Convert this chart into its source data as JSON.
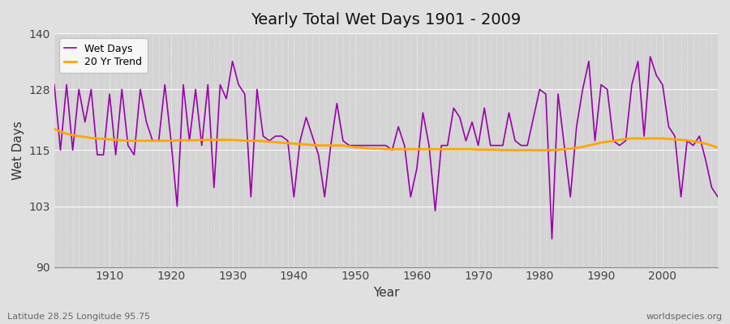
{
  "title": "Yearly Total Wet Days 1901 - 2009",
  "xlabel": "Year",
  "ylabel": "Wet Days",
  "lat_lon_label": "Latitude 28.25 Longitude 95.75",
  "watermark": "worldspecies.org",
  "wet_days_color": "#9900AA",
  "trend_color": "#FFA500",
  "bg_color": "#e0e0e0",
  "plot_bg_color": "#d4d4d4",
  "grid_color": "#ffffff",
  "ylim": [
    90,
    140
  ],
  "yticks": [
    90,
    103,
    115,
    128,
    140
  ],
  "xlim": [
    1901,
    2009
  ],
  "xticks": [
    1910,
    1920,
    1930,
    1940,
    1950,
    1960,
    1970,
    1980,
    1990,
    2000
  ],
  "years": [
    1901,
    1902,
    1903,
    1904,
    1905,
    1906,
    1907,
    1908,
    1909,
    1910,
    1911,
    1912,
    1913,
    1914,
    1915,
    1916,
    1917,
    1918,
    1919,
    1920,
    1921,
    1922,
    1923,
    1924,
    1925,
    1926,
    1927,
    1928,
    1929,
    1930,
    1931,
    1932,
    1933,
    1934,
    1935,
    1936,
    1937,
    1938,
    1939,
    1940,
    1941,
    1942,
    1943,
    1944,
    1945,
    1946,
    1947,
    1948,
    1949,
    1950,
    1951,
    1952,
    1953,
    1954,
    1955,
    1956,
    1957,
    1958,
    1959,
    1960,
    1961,
    1962,
    1963,
    1964,
    1965,
    1966,
    1967,
    1968,
    1969,
    1970,
    1971,
    1972,
    1973,
    1974,
    1975,
    1976,
    1977,
    1978,
    1979,
    1980,
    1981,
    1982,
    1983,
    1984,
    1985,
    1986,
    1987,
    1988,
    1989,
    1990,
    1991,
    1992,
    1993,
    1994,
    1995,
    1996,
    1997,
    1998,
    1999,
    2000,
    2001,
    2002,
    2003,
    2004,
    2005,
    2006,
    2007,
    2008,
    2009
  ],
  "wet_days": [
    129,
    115,
    129,
    115,
    128,
    121,
    128,
    114,
    114,
    127,
    114,
    128,
    116,
    114,
    128,
    121,
    117,
    117,
    129,
    117,
    103,
    129,
    117,
    128,
    116,
    129,
    107,
    129,
    126,
    134,
    129,
    127,
    105,
    128,
    118,
    117,
    118,
    118,
    117,
    105,
    117,
    122,
    118,
    114,
    105,
    116,
    125,
    117,
    116,
    116,
    116,
    116,
    116,
    116,
    116,
    115,
    120,
    116,
    105,
    111,
    123,
    116,
    102,
    116,
    116,
    124,
    122,
    117,
    121,
    116,
    124,
    116,
    116,
    116,
    123,
    117,
    116,
    116,
    122,
    128,
    127,
    96,
    127,
    116,
    105,
    120,
    128,
    134,
    117,
    129,
    128,
    117,
    116,
    117,
    129,
    134,
    118,
    135,
    131,
    129,
    120,
    118,
    105,
    117,
    116,
    118,
    113,
    107,
    105
  ],
  "trend": [
    119.5,
    119.0,
    118.5,
    118.2,
    118.0,
    117.8,
    117.6,
    117.5,
    117.4,
    117.3,
    117.2,
    117.1,
    117.0,
    117.0,
    117.0,
    117.0,
    117.0,
    117.0,
    117.0,
    117.0,
    117.1,
    117.1,
    117.1,
    117.1,
    117.2,
    117.2,
    117.2,
    117.2,
    117.2,
    117.2,
    117.1,
    117.0,
    117.0,
    117.0,
    116.9,
    116.8,
    116.7,
    116.6,
    116.5,
    116.4,
    116.3,
    116.2,
    116.1,
    116.0,
    116.0,
    116.0,
    116.0,
    116.0,
    115.8,
    115.6,
    115.5,
    115.4,
    115.3,
    115.3,
    115.2,
    115.2,
    115.2,
    115.2,
    115.2,
    115.2,
    115.2,
    115.2,
    115.2,
    115.2,
    115.2,
    115.2,
    115.2,
    115.2,
    115.2,
    115.1,
    115.1,
    115.1,
    115.1,
    115.0,
    115.0,
    115.0,
    115.0,
    115.0,
    115.0,
    115.0,
    115.0,
    115.0,
    115.1,
    115.2,
    115.3,
    115.5,
    115.7,
    116.0,
    116.3,
    116.6,
    116.8,
    117.0,
    117.2,
    117.4,
    117.5,
    117.5,
    117.5,
    117.5,
    117.5,
    117.5,
    117.4,
    117.3,
    117.2,
    117.1,
    116.9,
    116.7,
    116.4,
    116.0,
    115.5
  ]
}
